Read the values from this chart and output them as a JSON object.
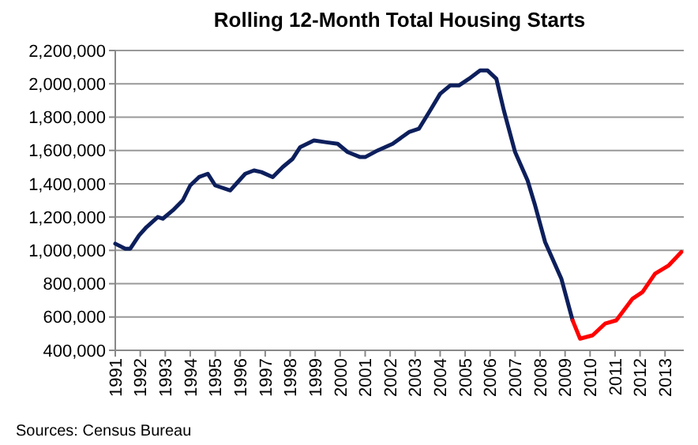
{
  "chart_data": {
    "type": "line",
    "title": "Rolling 12-Month Total Housing Starts",
    "annotations": [
      "Sources: Census Bureau"
    ],
    "xlim": [
      1991,
      2013.75
    ],
    "xticks": [
      1991,
      1992,
      1993,
      1994,
      1995,
      1996,
      1997,
      1998,
      1999,
      2000,
      2001,
      2002,
      2003,
      2004,
      2005,
      2006,
      2007,
      2008,
      2009,
      2010,
      2011,
      2012,
      2013
    ],
    "ylim": [
      400000,
      2200000
    ],
    "yticks": [
      {
        "value": 400000,
        "label": "400,000"
      },
      {
        "value": 600000,
        "label": "600,000"
      },
      {
        "value": 800000,
        "label": "800,000"
      },
      {
        "value": 1000000,
        "label": "1,000,000"
      },
      {
        "value": 1200000,
        "label": "1,200,000"
      },
      {
        "value": 1400000,
        "label": "1,400,000"
      },
      {
        "value": 1600000,
        "label": "1,600,000"
      },
      {
        "value": 1800000,
        "label": "1,800,000"
      },
      {
        "value": 2000000,
        "label": "2,000,000"
      },
      {
        "value": 2200000,
        "label": "2,200,000"
      }
    ],
    "grid": "y",
    "marker": "none",
    "line_style": "solid",
    "series": [
      {
        "color": "#0d1f5c",
        "x": [
          1991.0,
          1991.4,
          1991.6,
          1991.95,
          1992.25,
          1992.7,
          1992.9,
          1993.3,
          1993.7,
          1994.0,
          1994.35,
          1994.7,
          1995.0,
          1995.6,
          1995.9,
          1996.2,
          1996.55,
          1996.85,
          1997.3,
          1997.7,
          1998.1,
          1998.4,
          1998.95,
          1999.4,
          1999.9,
          2000.3,
          2000.8,
          2001.0,
          2001.5,
          2002.1,
          2002.75,
          2003.15,
          2003.6,
          2004.0,
          2004.4,
          2004.75,
          2005.15,
          2005.6,
          2005.9,
          2006.25,
          2006.55,
          2007.0,
          2007.5,
          2007.8,
          2008.2,
          2008.85,
          2009.3
        ],
        "values": [
          1040000,
          1010000,
          1010000,
          1090000,
          1140000,
          1200000,
          1190000,
          1240000,
          1300000,
          1390000,
          1440000,
          1460000,
          1390000,
          1360000,
          1410000,
          1460000,
          1480000,
          1470000,
          1440000,
          1500000,
          1550000,
          1620000,
          1660000,
          1650000,
          1640000,
          1590000,
          1560000,
          1560000,
          1600000,
          1640000,
          1710000,
          1730000,
          1840000,
          1940000,
          1990000,
          1990000,
          2030000,
          2080000,
          2080000,
          2030000,
          1840000,
          1590000,
          1420000,
          1270000,
          1050000,
          830000,
          580000
        ]
      },
      {
        "color": "#ff0000",
        "x": [
          2009.3,
          2009.6,
          2010.1,
          2010.6,
          2011.05,
          2011.7,
          2012.1,
          2012.6,
          2013.15,
          2013.65
        ],
        "values": [
          580000,
          470000,
          490000,
          560000,
          580000,
          710000,
          750000,
          860000,
          910000,
          990000
        ]
      }
    ]
  }
}
